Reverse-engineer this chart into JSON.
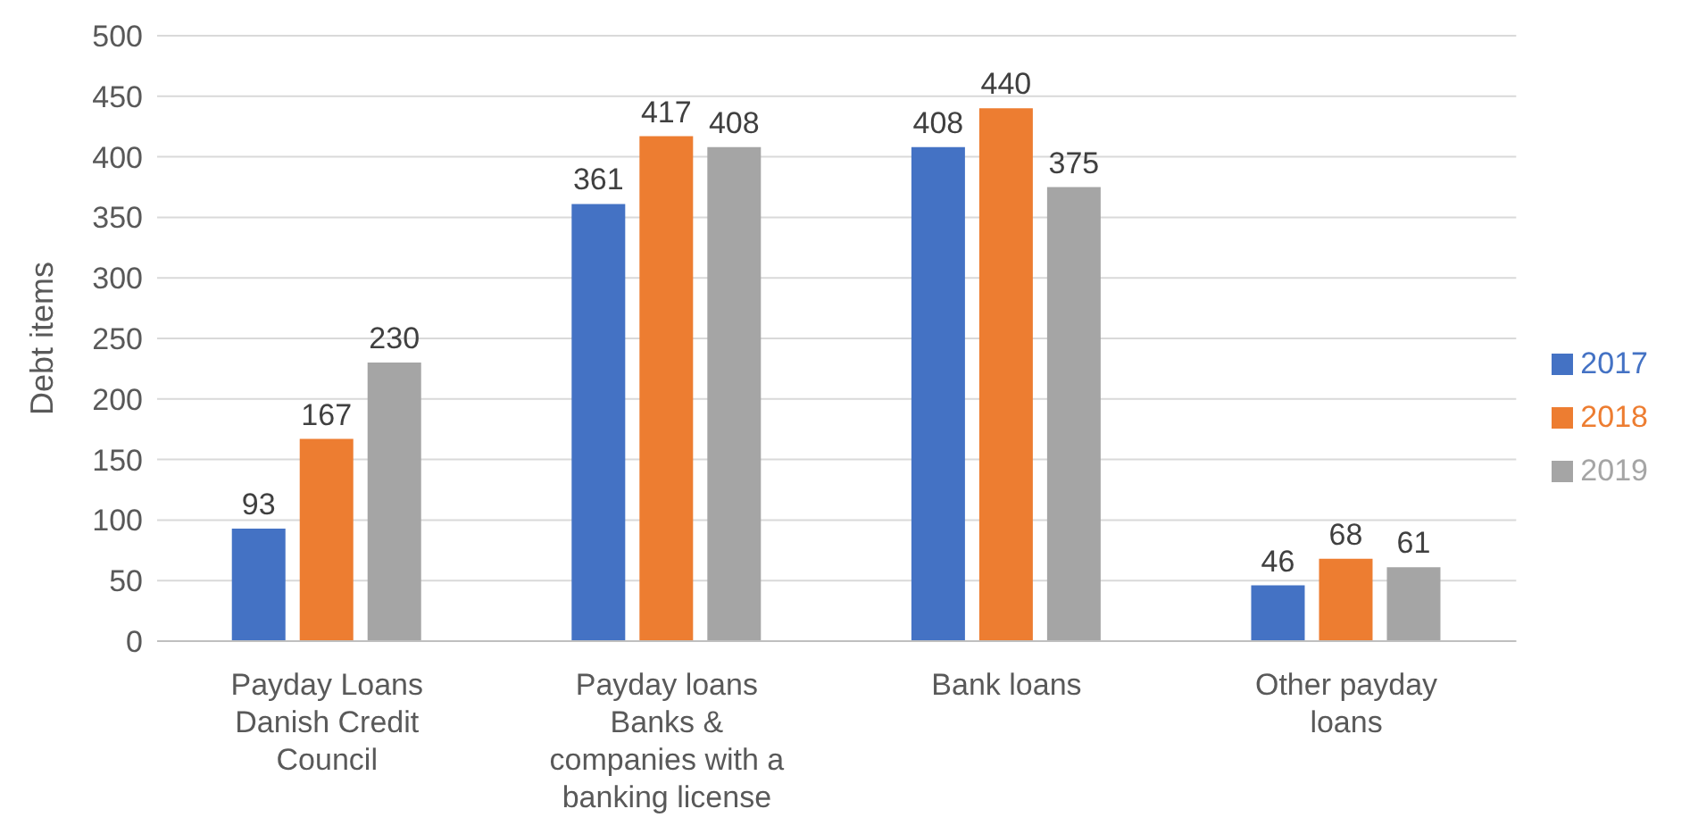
{
  "chart_data": {
    "type": "bar",
    "ylabel": "Debt items",
    "categories": [
      "Payday Loans Danish Credit Council",
      "Payday loans Banks & companies with a banking license",
      "Bank loans",
      "Other payday loans"
    ],
    "series": [
      {
        "name": "2017",
        "color": "#4472c4",
        "values": [
          93,
          361,
          408,
          46
        ]
      },
      {
        "name": "2018",
        "color": "#ed7d31",
        "values": [
          167,
          417,
          440,
          68
        ]
      },
      {
        "name": "2019",
        "color": "#a5a5a5",
        "values": [
          230,
          408,
          375,
          61
        ]
      }
    ],
    "ylim": [
      0,
      500
    ],
    "yticks": [
      0,
      50,
      100,
      150,
      200,
      250,
      300,
      350,
      400,
      450,
      500
    ],
    "grid": "y",
    "legend": "right",
    "data_labels": true
  }
}
